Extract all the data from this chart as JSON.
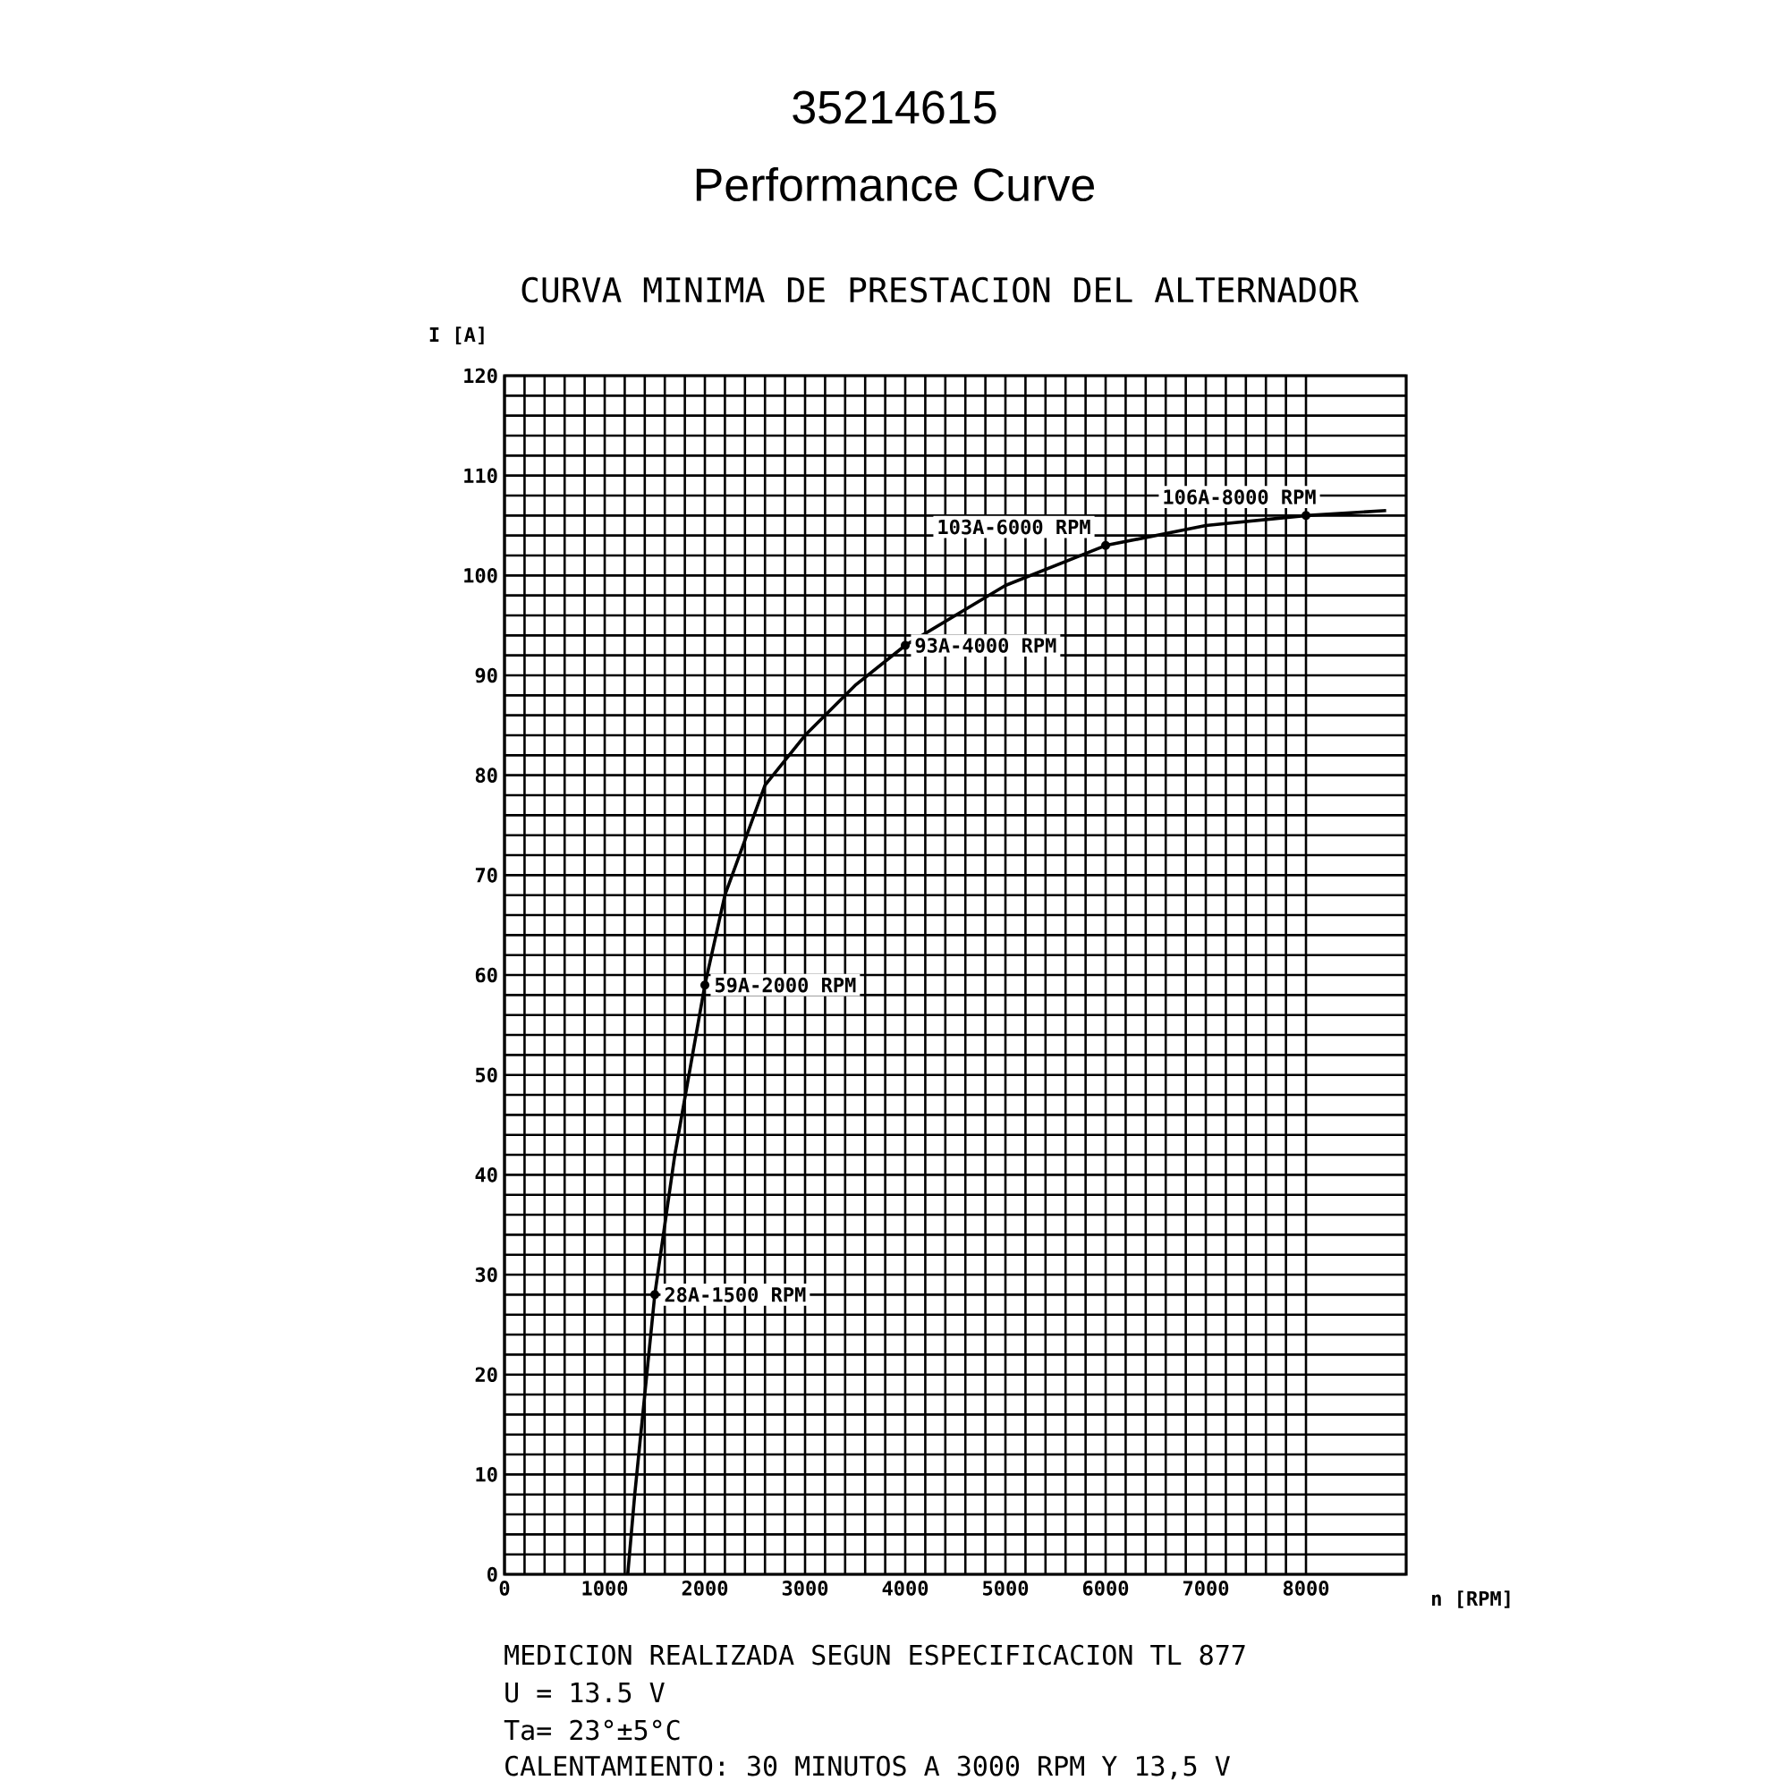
{
  "chart_data": {
    "type": "line",
    "title": "35214615",
    "subtitle": "Performance Curve",
    "xlabel": "n [RPM]",
    "ylabel": "I [A]",
    "x": [
      1230,
      1300,
      1400,
      1500,
      1700,
      2000,
      2200,
      2600,
      3000,
      3500,
      4000,
      5000,
      6000,
      7000,
      8000,
      8800
    ],
    "series": [
      {
        "color": "#000000",
        "values": [
          0,
          8,
          18,
          28,
          42,
          59,
          68,
          79,
          84,
          89,
          93,
          99,
          103,
          105,
          106,
          106.5
        ]
      }
    ],
    "xlim": [
      0,
      9000
    ],
    "ylim": [
      0,
      120
    ],
    "xticks": [
      0,
      1000,
      2000,
      3000,
      4000,
      5000,
      6000,
      7000,
      8000
    ],
    "yticks": [
      0,
      10,
      20,
      30,
      40,
      50,
      60,
      70,
      80,
      90,
      100,
      110,
      120
    ],
    "grid": true,
    "marker": "none",
    "line_style": "solid",
    "annotations": [
      "CURVA MINIMA DE PRESTACION DEL ALTERNADOR",
      {
        "text": "28A-1500 RPM",
        "x": 1500,
        "y": 28
      },
      {
        "text": "59A-2000 RPM",
        "x": 2000,
        "y": 59
      },
      {
        "text": "93A-4000 RPM",
        "x": 4000,
        "y": 93
      },
      {
        "text": "103A-6000 RPM",
        "x": 6000,
        "y": 103
      },
      {
        "text": "106A-8000 RPM",
        "x": 8000,
        "y": 106
      },
      "MEDICION REALIZADA SEGUN ESPECIFICACION TL 877",
      "U = 13.5 V",
      "Ta= 23°±5°C",
      "CALENTAMIENTO: 30 MINUTOS A 3000 RPM Y 13,5 V"
    ]
  }
}
